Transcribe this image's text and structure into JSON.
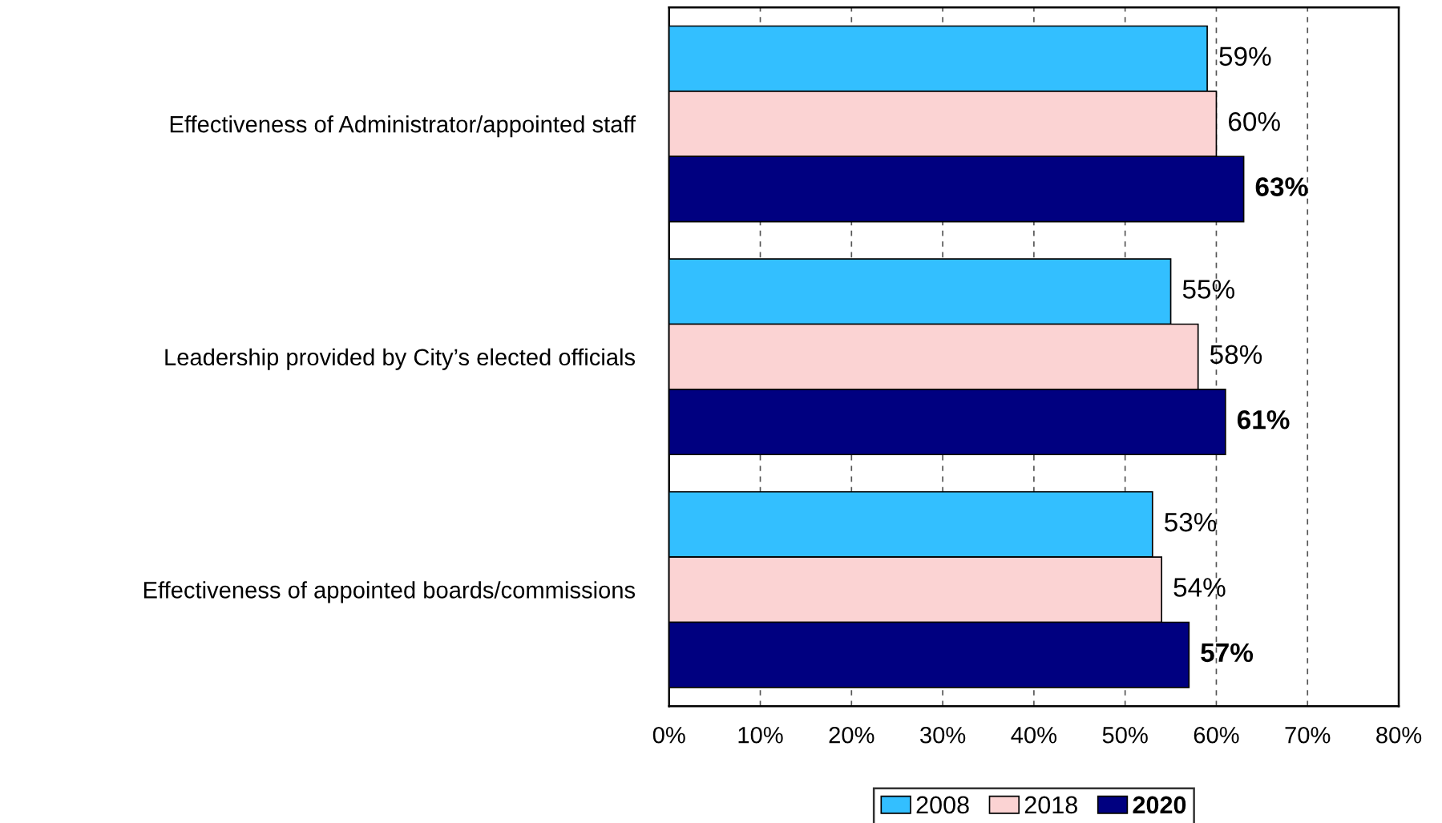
{
  "chart_data": {
    "type": "bar",
    "orientation": "horizontal",
    "categories": [
      "Effectiveness of Administrator/appointed staff",
      "Leadership provided by City’s elected officials",
      "Effectiveness of appointed boards/commissions"
    ],
    "series": [
      {
        "name": "2008",
        "color": "#33bfff",
        "values": [
          59,
          55,
          53
        ],
        "value_labels": [
          "59%",
          "55%",
          "53%"
        ]
      },
      {
        "name": "2018",
        "color": "#fbd3d3",
        "values": [
          60,
          58,
          54
        ],
        "value_labels": [
          "60%",
          "58%",
          "54%"
        ]
      },
      {
        "name": "2020",
        "color": "#000080",
        "values": [
          63,
          61,
          57
        ],
        "value_labels": [
          "63%",
          "61%",
          "57%"
        ]
      }
    ],
    "xlim": [
      0,
      80
    ],
    "xticks": [
      {
        "value": 0,
        "label": "0%"
      },
      {
        "value": 10,
        "label": "10%"
      },
      {
        "value": 20,
        "label": "20%"
      },
      {
        "value": 30,
        "label": "30%"
      },
      {
        "value": 40,
        "label": "40%"
      },
      {
        "value": 50,
        "label": "50%"
      },
      {
        "value": 60,
        "label": "60%"
      },
      {
        "value": 70,
        "label": "70%"
      },
      {
        "value": 80,
        "label": "80%"
      }
    ],
    "grid": "x",
    "legend": "bottom"
  }
}
